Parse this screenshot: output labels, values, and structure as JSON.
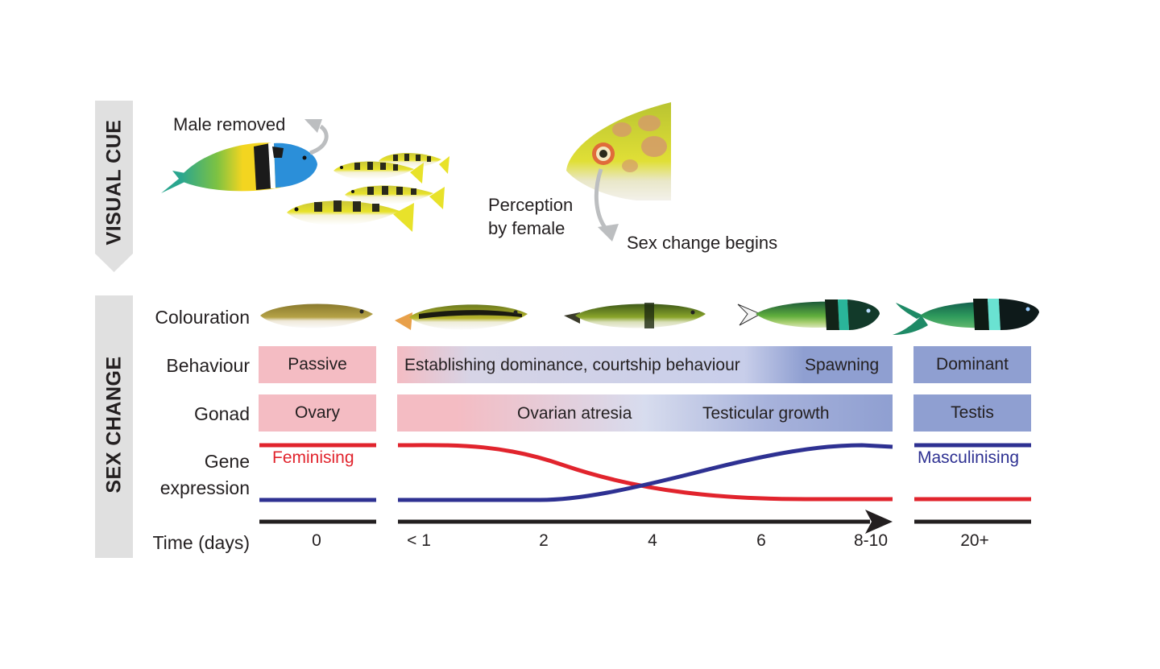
{
  "side_labels": {
    "visual_cue": "VISUAL CUE",
    "sex_change": "SEX CHANGE"
  },
  "visual_cue": {
    "male_removed": "Male removed",
    "perception_line1": "Perception",
    "perception_line2": "by female",
    "sex_change_begins": "Sex change begins"
  },
  "rows": {
    "colouration": "Colouration",
    "behaviour": "Behaviour",
    "gonad": "Gonad",
    "gene_line1": "Gene",
    "gene_line2": "expression",
    "time": "Time (days)"
  },
  "behaviour": {
    "passive": "Passive",
    "establishing": "Establishing dominance, courtship behaviour",
    "spawning": "Spawning",
    "dominant": "Dominant"
  },
  "gonad": {
    "ovary": "Ovary",
    "ovarian_atresia": "Ovarian atresia",
    "testicular_growth": "Testicular growth",
    "testis": "Testis"
  },
  "gene_expression": {
    "feminising": "Feminising",
    "masculinising": "Masculinising",
    "feminising_color": "#e1242d",
    "masculinising_color": "#2e3192"
  },
  "time_ticks": [
    "0",
    "< 1",
    "2",
    "4",
    "6",
    "8-10",
    "20+"
  ],
  "colors": {
    "pink": "#f4bcc3",
    "blue": "#8f9fd1",
    "sidebar": "#e0e0e0"
  }
}
